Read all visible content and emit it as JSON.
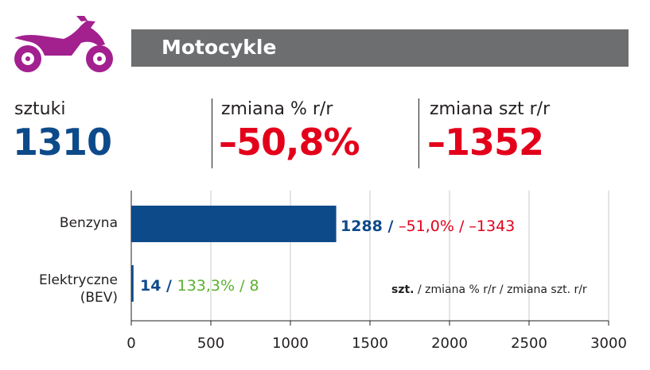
{
  "header": {
    "title": "Motocykle",
    "icon": "motorcycle-icon",
    "bar_color": "#6d6e70",
    "icon_color": "#a3208f"
  },
  "stats": [
    {
      "label": "sztuki",
      "value": "1310",
      "color": "#0d4a8a"
    },
    {
      "label": "zmiana % r/r",
      "value": "–50,8%",
      "color": "#e3001b"
    },
    {
      "label": "zmiana szt r/r",
      "value": "–1352",
      "color": "#e3001b"
    }
  ],
  "chart_data": {
    "type": "bar",
    "orientation": "horizontal",
    "categories": [
      "Benzyna",
      "Elektryczne (BEV)"
    ],
    "values": [
      1288,
      14
    ],
    "bar_color": "#0d4a8a",
    "xlim": [
      0,
      3000
    ],
    "xticks": [
      "0",
      "500",
      "1000",
      "1500",
      "2000",
      "2500",
      "3000"
    ],
    "grid": true,
    "annotations": [
      {
        "count": "1288 /",
        "rest": "–51,0% / –1343",
        "rest_color": "#e3001b"
      },
      {
        "count": "14 /",
        "rest": "133,3% / 8",
        "rest_color": "#5cb131"
      }
    ],
    "legend": {
      "bold": "szt.",
      "text": " / zmiana % r/r / zmiana szt. r/r"
    }
  }
}
